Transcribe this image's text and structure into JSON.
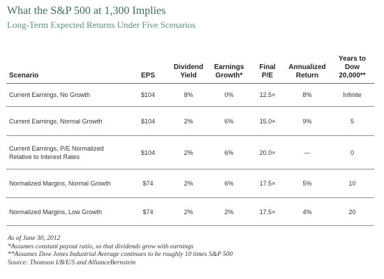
{
  "header": {
    "title": "What the S&P 500 at 1,300 Implies",
    "subtitle": "Long-Term Expected Returns Under Five Scenarios"
  },
  "table": {
    "columns": {
      "scenario": "Scenario",
      "eps": "EPS",
      "dividend_yield": [
        "Dividend",
        "Yield"
      ],
      "earnings_growth": [
        "Earnings",
        "Growth*"
      ],
      "final_pe": [
        "Final",
        "P/E"
      ],
      "annualized_return": [
        "Annualized",
        "Return"
      ],
      "years_to_dow": [
        "Years to",
        "Dow",
        "20,000**"
      ]
    },
    "rows": [
      {
        "scenario": [
          "Current Earnings, No Growth"
        ],
        "eps": "$104",
        "dividend_yield": "8%",
        "earnings_growth": "0%",
        "final_pe": "12.5×",
        "annualized_return": "8%",
        "years_to_dow": "Infinite"
      },
      {
        "scenario": [
          "Current Earnings, Normal Growth"
        ],
        "eps": "$104",
        "dividend_yield": "2%",
        "earnings_growth": "6%",
        "final_pe": "15.0×",
        "annualized_return": "9%",
        "years_to_dow": "5"
      },
      {
        "scenario": [
          "Current Earnings, P/E Normalized",
          "Relative to Interest Rates"
        ],
        "eps": "$104",
        "dividend_yield": "2%",
        "earnings_growth": "6%",
        "final_pe": "20.0×",
        "annualized_return": "—",
        "years_to_dow": "0"
      },
      {
        "scenario": [
          "Normalized Margins, Normal Growth"
        ],
        "eps": "$74",
        "dividend_yield": "2%",
        "earnings_growth": "6%",
        "final_pe": "17.5×",
        "annualized_return": "5%",
        "years_to_dow": "10"
      },
      {
        "scenario": [
          "Normalized Margins, Low Growth"
        ],
        "eps": "$74",
        "dividend_yield": "2%",
        "earnings_growth": "2%",
        "final_pe": "17.5×",
        "annualized_return": "4%",
        "years_to_dow": "20"
      }
    ]
  },
  "footnotes": [
    "As of June 30, 2012",
    "*Assumes constant payout ratio, so that dividends grow with earnings",
    "**Assumes Dow Jones Industrial Average continues to be roughly 10 times S&P 500",
    "Source: Thomson I/B/E/S and AllianceBernstein"
  ],
  "colors": {
    "title": "#3f6f57",
    "subtitle": "#5c9476",
    "rule": "#8f8f8f"
  }
}
